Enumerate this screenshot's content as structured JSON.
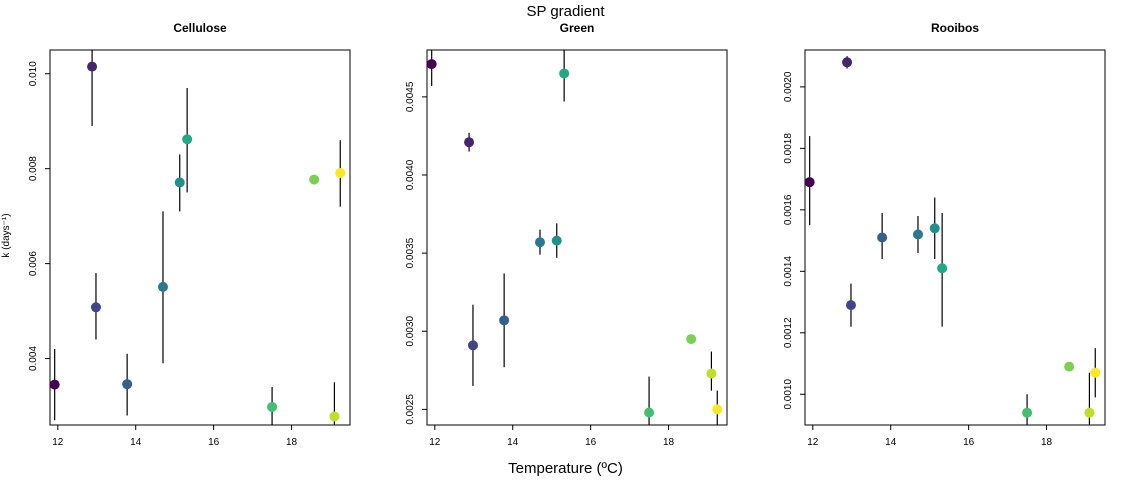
{
  "figure": {
    "title": "SP gradient",
    "xlabel": "Temperature (ºC)",
    "ylabel": "k (days⁻¹)"
  },
  "chart_data": [
    {
      "type": "scatter",
      "title": "Cellulose",
      "xlabel": "",
      "ylabel": "k (days⁻¹)",
      "xlim": [
        11.8,
        19.5
      ],
      "ylim": [
        0.0026,
        0.0105
      ],
      "xticks": [
        "12",
        "14",
        "16",
        "18"
      ],
      "xtick_values": [
        12,
        14,
        16,
        18
      ],
      "yticks": [
        "0.004",
        "0.006",
        "0.008",
        "0.010"
      ],
      "ytick_values": [
        0.004,
        0.006,
        0.008,
        0.01
      ],
      "points": [
        {
          "x": 11.92,
          "y": 0.00345,
          "lo": 0.0027,
          "hi": 0.0042,
          "color": "#440154"
        },
        {
          "x": 12.88,
          "y": 0.01015,
          "lo": 0.0089,
          "hi": 0.0105,
          "color": "#46256f"
        },
        {
          "x": 12.98,
          "y": 0.00508,
          "lo": 0.0044,
          "hi": 0.0058,
          "color": "#414487"
        },
        {
          "x": 13.78,
          "y": 0.00346,
          "lo": 0.0028,
          "hi": 0.0041,
          "color": "#355f8d"
        },
        {
          "x": 14.7,
          "y": 0.00551,
          "lo": 0.0039,
          "hi": 0.0071,
          "color": "#2a788e"
        },
        {
          "x": 15.13,
          "y": 0.00771,
          "lo": 0.0071,
          "hi": 0.0083,
          "color": "#21908d"
        },
        {
          "x": 15.32,
          "y": 0.00862,
          "lo": 0.0075,
          "hi": 0.0097,
          "color": "#22a884"
        },
        {
          "x": 17.5,
          "y": 0.00298,
          "lo": 0.0025,
          "hi": 0.0034,
          "color": "#44bf70"
        },
        {
          "x": 18.58,
          "y": 0.00777,
          "lo": 0.0077,
          "hi": 0.0078,
          "color": "#7ad151"
        },
        {
          "x": 19.1,
          "y": 0.00278,
          "lo": 0.0019,
          "hi": 0.0035,
          "color": "#bddf26"
        },
        {
          "x": 19.25,
          "y": 0.00791,
          "lo": 0.0072,
          "hi": 0.0086,
          "color": "#fde725"
        }
      ]
    },
    {
      "type": "scatter",
      "title": "Green",
      "xlabel": "",
      "ylabel": "",
      "xlim": [
        11.8,
        19.5
      ],
      "ylim": [
        0.0024,
        0.0048
      ],
      "xticks": [
        "12",
        "14",
        "16",
        "18"
      ],
      "xtick_values": [
        12,
        14,
        16,
        18
      ],
      "yticks": [
        "0.0025",
        "0.0030",
        "0.0035",
        "0.0040",
        "0.0045"
      ],
      "ytick_values": [
        0.0025,
        0.003,
        0.0035,
        0.004,
        0.0045
      ],
      "points": [
        {
          "x": 11.92,
          "y": 0.00471,
          "lo": 0.00457,
          "hi": 0.0048,
          "color": "#440154"
        },
        {
          "x": 12.88,
          "y": 0.00421,
          "lo": 0.00415,
          "hi": 0.00427,
          "color": "#46256f"
        },
        {
          "x": 12.98,
          "y": 0.00291,
          "lo": 0.00265,
          "hi": 0.00317,
          "color": "#414487"
        },
        {
          "x": 13.78,
          "y": 0.00307,
          "lo": 0.00277,
          "hi": 0.00337,
          "color": "#355f8d"
        },
        {
          "x": 14.7,
          "y": 0.00357,
          "lo": 0.00349,
          "hi": 0.00365,
          "color": "#2a788e"
        },
        {
          "x": 15.13,
          "y": 0.00358,
          "lo": 0.00347,
          "hi": 0.00369,
          "color": "#21908d"
        },
        {
          "x": 15.32,
          "y": 0.00465,
          "lo": 0.00447,
          "hi": 0.0048,
          "color": "#22a884"
        },
        {
          "x": 17.5,
          "y": 0.00248,
          "lo": 0.0024,
          "hi": 0.00271,
          "color": "#44bf70"
        },
        {
          "x": 18.58,
          "y": 0.00295,
          "lo": 0.00294,
          "hi": 0.00296,
          "color": "#7ad151"
        },
        {
          "x": 19.1,
          "y": 0.00273,
          "lo": 0.00262,
          "hi": 0.00287,
          "color": "#bddf26"
        },
        {
          "x": 19.25,
          "y": 0.0025,
          "lo": 0.0024,
          "hi": 0.00262,
          "color": "#fde725"
        }
      ]
    },
    {
      "type": "scatter",
      "title": "Rooibos",
      "xlabel": "",
      "ylabel": "",
      "xlim": [
        11.8,
        19.5
      ],
      "ylim": [
        0.0009,
        0.00212
      ],
      "xticks": [
        "12",
        "14",
        "16",
        "18"
      ],
      "xtick_values": [
        12,
        14,
        16,
        18
      ],
      "yticks": [
        "0.0010",
        "0.0012",
        "0.0014",
        "0.0016",
        "0.0018",
        "0.0020"
      ],
      "ytick_values": [
        0.001,
        0.0012,
        0.0014,
        0.0016,
        0.0018,
        0.002
      ],
      "points": [
        {
          "x": 11.92,
          "y": 0.00169,
          "lo": 0.00155,
          "hi": 0.00184,
          "color": "#440154"
        },
        {
          "x": 12.88,
          "y": 0.00208,
          "lo": 0.00206,
          "hi": 0.0021,
          "color": "#46256f"
        },
        {
          "x": 12.98,
          "y": 0.00129,
          "lo": 0.00122,
          "hi": 0.00136,
          "color": "#414487"
        },
        {
          "x": 13.78,
          "y": 0.00151,
          "lo": 0.00144,
          "hi": 0.00159,
          "color": "#355f8d"
        },
        {
          "x": 14.7,
          "y": 0.00152,
          "lo": 0.00146,
          "hi": 0.00158,
          "color": "#2a788e"
        },
        {
          "x": 15.13,
          "y": 0.00154,
          "lo": 0.00144,
          "hi": 0.00164,
          "color": "#21908d"
        },
        {
          "x": 15.32,
          "y": 0.00141,
          "lo": 0.00122,
          "hi": 0.00159,
          "color": "#22a884"
        },
        {
          "x": 17.5,
          "y": 0.00094,
          "lo": 0.0009,
          "hi": 0.001,
          "color": "#44bf70"
        },
        {
          "x": 18.58,
          "y": 0.00109,
          "lo": 0.00108,
          "hi": 0.0011,
          "color": "#7ad151"
        },
        {
          "x": 19.1,
          "y": 0.00094,
          "lo": 0.0009,
          "hi": 0.00107,
          "color": "#bddf26"
        },
        {
          "x": 19.25,
          "y": 0.00107,
          "lo": 0.00099,
          "hi": 0.00115,
          "color": "#fde725"
        }
      ]
    }
  ]
}
